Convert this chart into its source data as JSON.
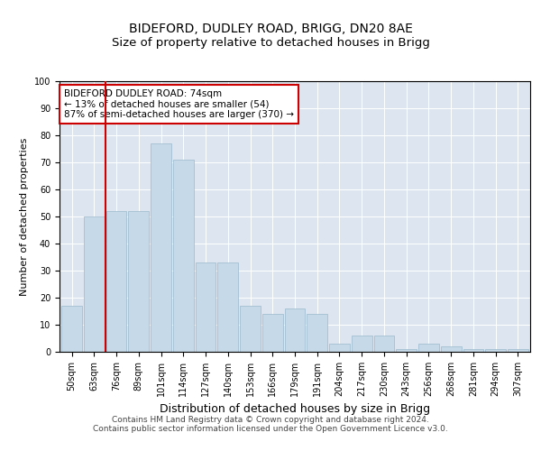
{
  "title": "BIDEFORD, DUDLEY ROAD, BRIGG, DN20 8AE",
  "subtitle": "Size of property relative to detached houses in Brigg",
  "xlabel": "Distribution of detached houses by size in Brigg",
  "ylabel": "Number of detached properties",
  "categories": [
    "50sqm",
    "63sqm",
    "76sqm",
    "89sqm",
    "101sqm",
    "114sqm",
    "127sqm",
    "140sqm",
    "153sqm",
    "166sqm",
    "179sqm",
    "191sqm",
    "204sqm",
    "217sqm",
    "230sqm",
    "243sqm",
    "256sqm",
    "268sqm",
    "281sqm",
    "294sqm",
    "307sqm"
  ],
  "values": [
    17,
    50,
    52,
    52,
    77,
    71,
    33,
    33,
    17,
    14,
    16,
    14,
    3,
    6,
    6,
    1,
    3,
    2,
    1,
    1,
    1
  ],
  "bar_color": "#c6d9e8",
  "bar_edge_color": "#9ab8cc",
  "vline_x_index": 2,
  "vline_color": "#cc0000",
  "annotation_text": "BIDEFORD DUDLEY ROAD: 74sqm\n← 13% of detached houses are smaller (54)\n87% of semi-detached houses are larger (370) →",
  "annotation_box_color": "#ffffff",
  "annotation_box_edge": "#cc0000",
  "ylim": [
    0,
    100
  ],
  "background_color": "#dde6f0",
  "footer": "Contains HM Land Registry data © Crown copyright and database right 2024.\nContains public sector information licensed under the Open Government Licence v3.0.",
  "title_fontsize": 10,
  "subtitle_fontsize": 9.5,
  "xlabel_fontsize": 9,
  "ylabel_fontsize": 8,
  "tick_fontsize": 7,
  "annotation_fontsize": 7.5,
  "footer_fontsize": 6.5
}
